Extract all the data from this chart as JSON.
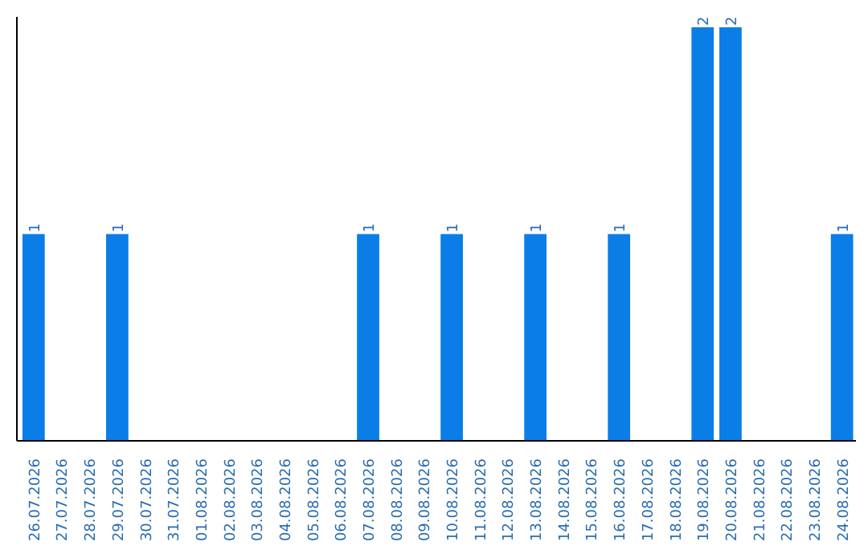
{
  "chart_data": {
    "type": "bar",
    "categories": [
      "26.07.2026",
      "27.07.2026",
      "28.07.2026",
      "29.07.2026",
      "30.07.2026",
      "31.07.2026",
      "01.08.2026",
      "02.08.2026",
      "03.08.2026",
      "04.08.2026",
      "05.08.2026",
      "06.08.2026",
      "07.08.2026",
      "08.08.2026",
      "09.08.2026",
      "10.08.2026",
      "11.08.2026",
      "12.08.2026",
      "13.08.2026",
      "14.08.2026",
      "15.08.2026",
      "16.08.2026",
      "17.08.2026",
      "18.08.2026",
      "19.08.2026",
      "20.08.2026",
      "21.08.2026",
      "22.08.2026",
      "23.08.2026",
      "24.08.2026"
    ],
    "values": [
      1,
      0,
      0,
      1,
      0,
      0,
      0,
      0,
      0,
      0,
      0,
      0,
      1,
      0,
      0,
      1,
      0,
      0,
      1,
      0,
      0,
      1,
      0,
      0,
      2,
      2,
      0,
      0,
      0,
      1
    ],
    "value_labels": [
      "1",
      null,
      null,
      "1",
      null,
      null,
      null,
      null,
      null,
      null,
      null,
      null,
      "1",
      null,
      null,
      "1",
      null,
      null,
      "1",
      null,
      null,
      "1",
      null,
      null,
      "2",
      "2",
      null,
      null,
      null,
      "1"
    ],
    "color": "#0a7ee6",
    "ylim": [
      0,
      2.05
    ],
    "grid": false
  }
}
